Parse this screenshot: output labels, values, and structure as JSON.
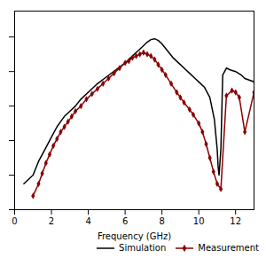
{
  "chart_data": {
    "type": "line",
    "xlabel": "Frequency (GHz)",
    "xlim": [
      0,
      13
    ],
    "xticks": [
      0,
      2,
      4,
      6,
      8,
      10,
      12
    ],
    "ylim": [
      0,
      11.5
    ],
    "yticks": [
      0,
      2,
      4,
      6,
      8,
      10
    ],
    "tick_labels": "x",
    "legend": "lower right",
    "series": [
      {
        "name": "Simulation",
        "color": "#000000",
        "x": [
          0.5,
          1.0,
          1.3,
          1.6,
          2.0,
          2.3,
          2.5,
          2.7,
          3.0,
          3.3,
          3.6,
          4.0,
          4.5,
          5.0,
          5.5,
          6.0,
          6.3,
          6.6,
          7.0,
          7.2,
          7.4,
          7.6,
          7.8,
          8.0,
          8.3,
          8.6,
          9.0,
          9.3,
          9.5,
          9.8,
          10.0,
          10.3,
          10.6,
          10.85,
          11.0,
          11.05,
          11.1,
          11.2,
          11.3,
          11.5,
          11.7,
          12.0,
          12.3,
          12.5,
          13.0
        ],
        "values": [
          1.5,
          2.0,
          2.8,
          3.4,
          4.2,
          4.8,
          5.1,
          5.4,
          5.7,
          6.0,
          6.4,
          6.8,
          7.3,
          7.7,
          8.1,
          8.5,
          8.8,
          9.1,
          9.5,
          9.7,
          9.85,
          9.9,
          9.8,
          9.6,
          9.2,
          8.8,
          8.4,
          8.1,
          7.9,
          7.6,
          7.4,
          7.1,
          6.5,
          5.2,
          3.5,
          2.5,
          2.0,
          3.5,
          7.8,
          8.2,
          8.1,
          8.0,
          7.8,
          7.6,
          7.4
        ]
      },
      {
        "name": "Measurement",
        "color": "#8B0000",
        "marker": "diamond",
        "x": [
          1.0,
          1.3,
          1.5,
          1.7,
          1.9,
          2.1,
          2.3,
          2.5,
          2.7,
          2.9,
          3.1,
          3.3,
          3.6,
          3.9,
          4.2,
          4.5,
          4.8,
          5.1,
          5.4,
          5.7,
          6.0,
          6.2,
          6.4,
          6.6,
          6.8,
          7.0,
          7.2,
          7.4,
          7.6,
          7.8,
          8.0,
          8.2,
          8.5,
          8.8,
          9.0,
          9.2,
          9.5,
          9.7,
          10.0,
          10.2,
          10.4,
          10.6,
          10.8,
          11.0,
          11.2,
          11.5,
          11.8,
          12.0,
          12.2,
          12.5,
          13.0
        ],
        "values": [
          0.8,
          1.5,
          2.1,
          2.7,
          3.2,
          3.7,
          4.1,
          4.5,
          4.8,
          5.1,
          5.4,
          5.7,
          6.0,
          6.4,
          6.7,
          7.0,
          7.3,
          7.6,
          7.9,
          8.2,
          8.5,
          8.6,
          8.8,
          8.9,
          9.0,
          9.1,
          9.0,
          8.9,
          8.7,
          8.4,
          8.1,
          7.8,
          7.3,
          6.8,
          6.5,
          6.2,
          5.8,
          5.5,
          5.0,
          4.5,
          3.8,
          3.0,
          2.2,
          1.5,
          1.2,
          6.6,
          6.9,
          6.8,
          6.5,
          4.5,
          6.8
        ]
      }
    ]
  }
}
